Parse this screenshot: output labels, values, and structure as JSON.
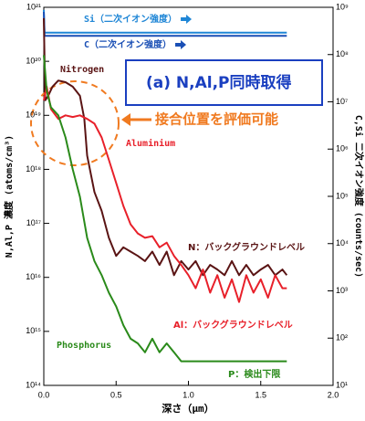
{
  "chart_data": {
    "type": "line",
    "x_label": "深さ（μm）",
    "y_label": "N,Al,P 濃度 (atoms/cm³)",
    "y2_label": "C,Si 二次イオン強度 (counts/sec)",
    "xlim": [
      0,
      2
    ],
    "xticks": [
      {
        "value": 0,
        "label": "0.0"
      },
      0.5,
      {
        "value": 1,
        "label": "1.0"
      },
      1.5,
      {
        "value": 2,
        "label": "2.0"
      }
    ],
    "ylog": true,
    "ylim": [
      100000000000000.0,
      1e+21
    ],
    "yticks": [
      {
        "value": 100000000000000.0,
        "label": "10¹⁴"
      },
      {
        "value": 1000000000000000.0,
        "label": "10¹⁵"
      },
      {
        "value": 1e+16,
        "label": "10¹⁶"
      },
      {
        "value": 1e+17,
        "label": "10¹⁷"
      },
      {
        "value": 1e+18,
        "label": "10¹⁸"
      },
      {
        "value": 1e+19,
        "label": "10¹⁹"
      },
      {
        "value": 1e+20,
        "label": "10²⁰"
      },
      {
        "value": 1e+21,
        "label": "10²¹"
      }
    ],
    "y2log": true,
    "y2lim": [
      10,
      1000000000.0
    ],
    "y2ticks": [
      {
        "value": 10,
        "label": "10¹"
      },
      {
        "value": 100,
        "label": "10²"
      },
      {
        "value": 1000,
        "label": "10³"
      },
      {
        "value": 10000.0,
        "label": "10⁴"
      },
      {
        "value": 100000.0,
        "label": "10⁵"
      },
      {
        "value": 1000000.0,
        "label": "10⁶"
      },
      {
        "value": 10000000.0,
        "label": "10⁷"
      },
      {
        "value": 100000000.0,
        "label": "10⁸"
      },
      {
        "value": 1000000000.0,
        "label": "10⁹"
      }
    ],
    "series": [
      {
        "name": "Si（二次イオン強度）",
        "color": "#1f86d6",
        "axis": "y2",
        "x": [
          0,
          0.005,
          0.5,
          1,
          1.68
        ],
        "values": [
          880000000.0,
          290000000.0,
          290000000.0,
          290000000.0,
          290000000.0
        ]
      },
      {
        "name": "C（二次イオン強度）",
        "color": "#1a4fb5",
        "axis": "y2",
        "x": [
          0,
          0.005,
          0.5,
          1,
          1.68
        ],
        "values": [
          800000000.0,
          250000000.0,
          250000000.0,
          250000000.0,
          250000000.0
        ]
      },
      {
        "name": "Nitrogen",
        "color": "#5a1414",
        "x": [
          0,
          0.01,
          0.03,
          0.06,
          0.1,
          0.15,
          0.2,
          0.25,
          0.28,
          0.3,
          0.35,
          0.4,
          0.45,
          0.5,
          0.55,
          0.6,
          0.65,
          0.7,
          0.75,
          0.8,
          0.85,
          0.9,
          0.95,
          1.0,
          1.05,
          1.1,
          1.15,
          1.2,
          1.25,
          1.3,
          1.35,
          1.4,
          1.45,
          1.5,
          1.55,
          1.6,
          1.65,
          1.68
        ],
        "values": [
          6.3e+20,
          1.9e+19,
          2.3e+19,
          3.4e+19,
          4.4e+19,
          4.1e+19,
          3.4e+19,
          2.3e+19,
          8.6e+18,
          1.8e+18,
          3.8e+17,
          1.7e+17,
          5.4e+16,
          2.5e+16,
          3.6e+16,
          3e+16,
          2.5e+16,
          2e+16,
          3e+16,
          1.7e+16,
          3e+16,
          1.1e+16,
          2e+16,
          1.4e+16,
          2e+16,
          1.1e+16,
          1.7e+16,
          1.4e+16,
          1.1e+16,
          2e+16,
          1.1e+16,
          1.7e+16,
          1.1e+16,
          1.4e+16,
          1.7e+16,
          1.1e+16,
          1.4e+16,
          1.1e+16
        ]
      },
      {
        "name": "Aluminium",
        "color": "#e8202a",
        "x": [
          0,
          0.02,
          0.05,
          0.1,
          0.15,
          0.2,
          0.25,
          0.3,
          0.35,
          0.4,
          0.45,
          0.5,
          0.55,
          0.6,
          0.65,
          0.7,
          0.75,
          0.8,
          0.85,
          0.9,
          0.95,
          1.0,
          1.05,
          1.1,
          1.15,
          1.2,
          1.25,
          1.3,
          1.35,
          1.4,
          1.45,
          1.5,
          1.55,
          1.6,
          1.65,
          1.68
        ],
        "values": [
          1.9e+19,
          3.4e+19,
          1.3e+19,
          8.6e+18,
          1e+19,
          9.3e+18,
          1e+19,
          8.6e+18,
          7e+18,
          3.9e+18,
          1.5e+18,
          5.6e+17,
          2.1e+17,
          9.6e+16,
          6.5e+16,
          5.4e+16,
          5.8e+16,
          3.6e+16,
          4.4e+16,
          2.5e+16,
          1.7e+16,
          1.1e+16,
          6300000000000000.0,
          1.4e+16,
          5200000000000000.0,
          1.1e+16,
          4200000000000000.0,
          9200000000000000.0,
          3500000000000000.0,
          1.1e+16,
          5200000000000000.0,
          9200000000000000.0,
          4200000000000000.0,
          1.1e+16,
          6300000000000000.0,
          6300000000000000.0
        ]
      },
      {
        "name": "Phosphorus",
        "color": "#2a8a1a",
        "x": [
          0,
          0.02,
          0.05,
          0.1,
          0.15,
          0.2,
          0.25,
          0.3,
          0.35,
          0.4,
          0.45,
          0.5,
          0.55,
          0.6,
          0.65,
          0.7,
          0.75,
          0.8,
          0.85,
          0.9,
          0.95,
          1.68
        ],
        "values": [
          1.3e+20,
          2.8e+19,
          1.4e+19,
          1e+19,
          3.9e+18,
          1e+18,
          3.1e+17,
          5.4e+16,
          2e+16,
          1.1e+16,
          5200000000000000.0,
          2900000000000000.0,
          1300000000000000.0,
          730000000000000.0,
          600000000000000.0,
          410000000000000.0,
          730000000000000.0,
          410000000000000.0,
          600000000000000.0,
          410000000000000.0,
          280000000000000.0,
          280000000000000.0
        ]
      }
    ],
    "annotations": [
      {
        "text": "N：バックグラウンドレベル",
        "color": "#5a1414"
      },
      {
        "text": "Al：バックグラウンドレベル",
        "color": "#e8202a"
      },
      {
        "text": "P：検出下限",
        "color": "#2a8a1a"
      },
      {
        "text": "(a)  N,Al,P同時取得",
        "color": "#1a3fc0"
      },
      {
        "text": "接合位置を評価可能",
        "color": "#f07a20"
      }
    ]
  }
}
